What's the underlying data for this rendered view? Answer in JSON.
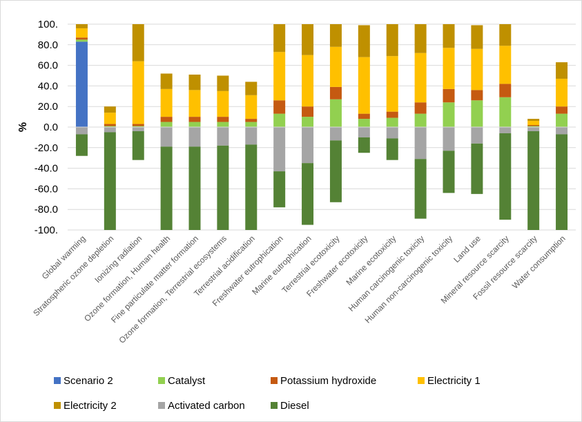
{
  "chart_data": {
    "type": "bar",
    "stacked": true,
    "ylabel": "%",
    "ylim": [
      -100,
      100
    ],
    "yticks": [
      "100.",
      "80.0",
      "60.0",
      "40.0",
      "20.0",
      "0.0",
      "-20.0",
      "-40.0",
      "-60.0",
      "-80.0",
      "-100."
    ],
    "grid": true,
    "legend_position": "bottom",
    "categories": [
      "Global warming",
      "Stratospheric ozone depletion",
      "Ionizing radiation",
      "Ozone formation, Human health",
      "Fine particulate matter formation",
      "Ozone formation, Terrestrial ecosystems",
      "Terrestrial acidification",
      "Freshwater eutrophication",
      "Marine eutrophication",
      "Terrestrial ecotoxicity",
      "Freshwater ecotoxicity",
      "Marine ecotoxicity",
      "Human carcinogenic toxicity",
      "Human non-carcinogenic toxicity",
      "Land use",
      "Mineral resource scarcity",
      "Fossil resource scarcity",
      "Water consumption"
    ],
    "positive_series": [
      {
        "name": "Scenario 2",
        "color": "#4472C4",
        "values": [
          83,
          0,
          0,
          0,
          0,
          0,
          0,
          0,
          0,
          0,
          0,
          0,
          0,
          0,
          0,
          0,
          0,
          0
        ]
      },
      {
        "name": "Catalyst",
        "color": "#92D050",
        "values": [
          2,
          1,
          1,
          5,
          5,
          5,
          5,
          13,
          10,
          27,
          8,
          9,
          13,
          24,
          26,
          29,
          1,
          13
        ]
      },
      {
        "name": "Potassium hydroxide",
        "color": "#C55A11",
        "values": [
          2,
          2,
          2,
          5,
          5,
          5,
          3,
          13,
          10,
          12,
          5,
          6,
          11,
          13,
          10,
          13,
          1,
          7
        ]
      },
      {
        "name": "Electricity 1",
        "color": "#FFC000",
        "values": [
          9,
          11,
          61,
          27,
          26,
          25,
          23,
          47,
          50,
          39,
          55,
          54,
          48,
          40,
          40,
          37,
          4,
          27
        ]
      },
      {
        "name": "Electricity 2",
        "color": "#BF9000",
        "values": [
          4,
          6,
          36,
          15,
          15,
          15,
          13,
          27,
          30,
          22,
          31,
          31,
          28,
          23,
          23,
          21,
          2,
          16
        ]
      }
    ],
    "negative_series": [
      {
        "name": "Activated carbon",
        "color": "#A5A5A5",
        "values": [
          -7,
          -5,
          -4,
          -19,
          -19,
          -18,
          -17,
          -43,
          -35,
          -13,
          -10,
          -11,
          -31,
          -23,
          -16,
          -6,
          -4,
          -7
        ]
      },
      {
        "name": "Diesel",
        "color": "#548235",
        "values": [
          -21,
          -95,
          -28,
          -81,
          -81,
          -82,
          -83,
          -35,
          -60,
          -60,
          -15,
          -21,
          -58,
          -41,
          -49,
          -84,
          -96,
          -93
        ]
      }
    ],
    "legend": [
      "Scenario 2",
      "Catalyst",
      "Potassium hydroxide",
      "Electricity 1",
      "Electricity 2",
      "Activated carbon",
      "Diesel"
    ]
  }
}
